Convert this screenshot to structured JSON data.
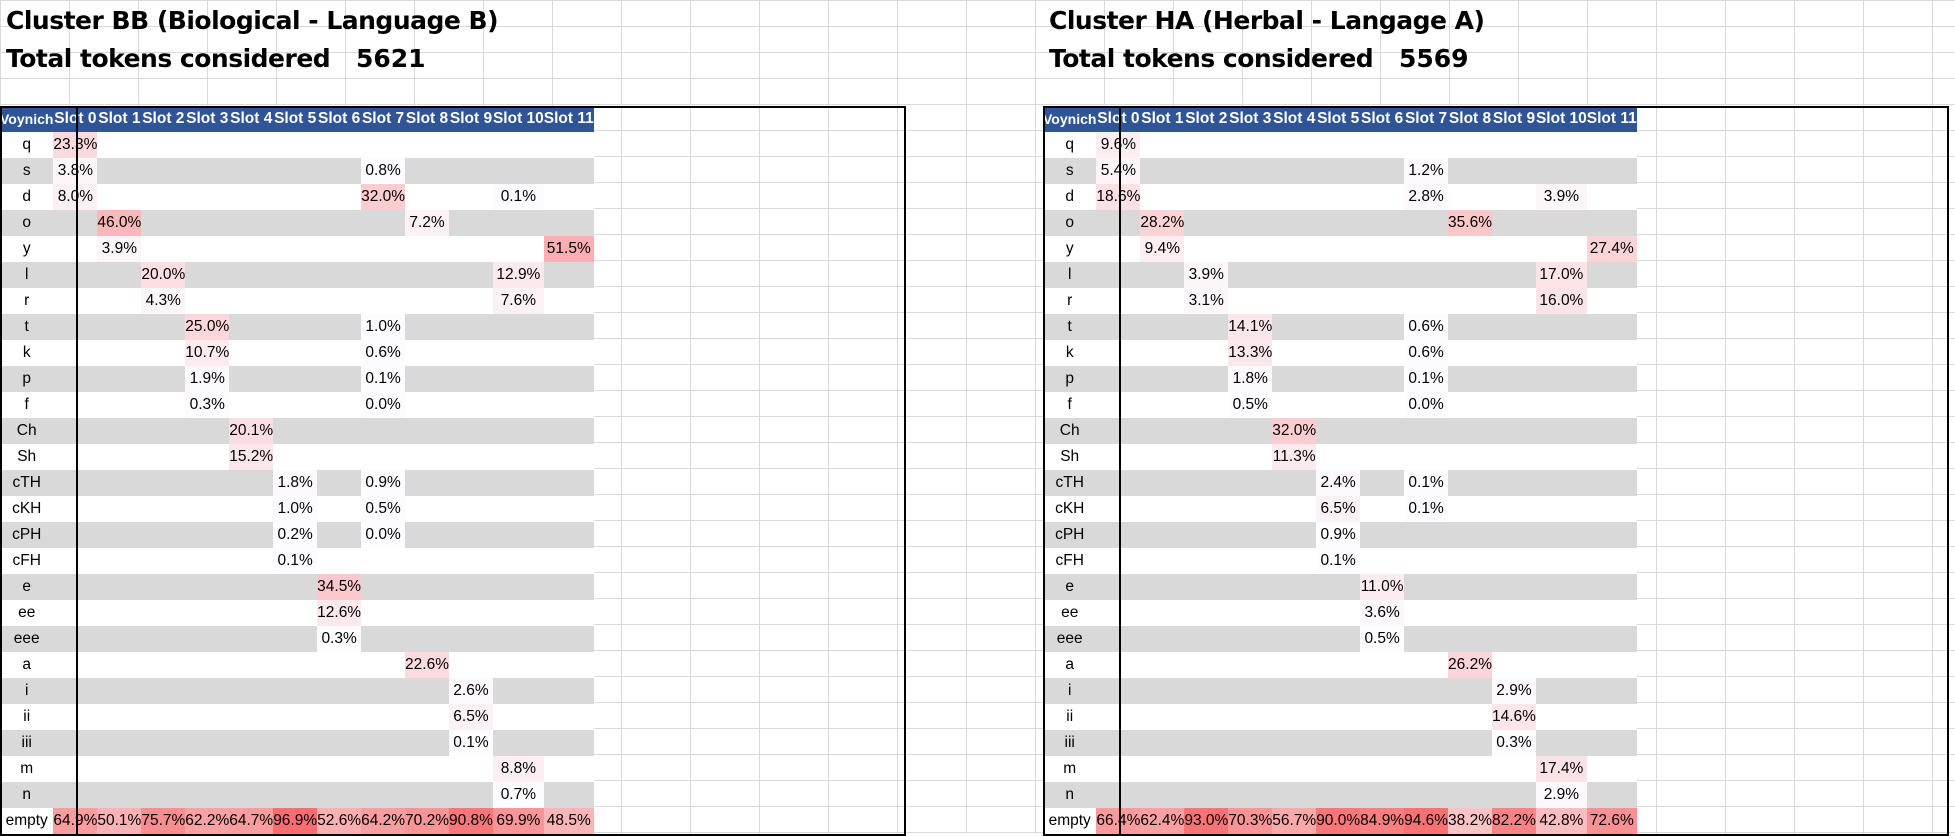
{
  "row_labels": [
    "q",
    "s",
    "d",
    "o",
    "y",
    "l",
    "r",
    "t",
    "k",
    "p",
    "f",
    "Ch",
    "Sh",
    "cTH",
    "cKH",
    "cPH",
    "cFH",
    "e",
    "ee",
    "eee",
    "a",
    "i",
    "ii",
    "iii",
    "m",
    "n",
    "empty"
  ],
  "col_header": [
    "Voynich",
    "Slot 0",
    "Slot 1",
    "Slot 2",
    "Slot 3",
    "Slot 4",
    "Slot 5",
    "Slot 6",
    "Slot 7",
    "Slot 8",
    "Slot 9",
    "Slot 10",
    "Slot 11"
  ],
  "colors": {
    "header_bg": "#2f5596",
    "header_text": "#ffffff",
    "stripe": "#d9d9d9",
    "heat_max": "#f8696b"
  },
  "clusters": [
    {
      "title": "Cluster BB (Biological - Language B)",
      "total_label": "Total tokens considered",
      "total_value": "5621",
      "rows": [
        [
          "23.3%",
          "",
          "",
          "",
          "",
          "",
          "",
          "",
          "",
          "",
          "",
          ""
        ],
        [
          "3.8%",
          "",
          "",
          "",
          "",
          "",
          "",
          "0.8%",
          "",
          "",
          "",
          ""
        ],
        [
          "8.0%",
          "",
          "",
          "",
          "",
          "",
          "",
          "32.0%",
          "",
          "",
          "0.1%",
          ""
        ],
        [
          "",
          "46.0%",
          "",
          "",
          "",
          "",
          "",
          "",
          "7.2%",
          "",
          "",
          ""
        ],
        [
          "",
          "3.9%",
          "",
          "",
          "",
          "",
          "",
          "",
          "",
          "",
          "",
          "51.5%"
        ],
        [
          "",
          "",
          "20.0%",
          "",
          "",
          "",
          "",
          "",
          "",
          "",
          "12.9%",
          ""
        ],
        [
          "",
          "",
          "4.3%",
          "",
          "",
          "",
          "",
          "",
          "",
          "",
          "7.6%",
          ""
        ],
        [
          "",
          "",
          "",
          "25.0%",
          "",
          "",
          "",
          "1.0%",
          "",
          "",
          "",
          ""
        ],
        [
          "",
          "",
          "",
          "10.7%",
          "",
          "",
          "",
          "0.6%",
          "",
          "",
          "",
          ""
        ],
        [
          "",
          "",
          "",
          "1.9%",
          "",
          "",
          "",
          "0.1%",
          "",
          "",
          "",
          ""
        ],
        [
          "",
          "",
          "",
          "0.3%",
          "",
          "",
          "",
          "0.0%",
          "",
          "",
          "",
          ""
        ],
        [
          "",
          "",
          "",
          "",
          "20.1%",
          "",
          "",
          "",
          "",
          "",
          "",
          ""
        ],
        [
          "",
          "",
          "",
          "",
          "15.2%",
          "",
          "",
          "",
          "",
          "",
          "",
          ""
        ],
        [
          "",
          "",
          "",
          "",
          "",
          "1.8%",
          "",
          "0.9%",
          "",
          "",
          "",
          ""
        ],
        [
          "",
          "",
          "",
          "",
          "",
          "1.0%",
          "",
          "0.5%",
          "",
          "",
          "",
          ""
        ],
        [
          "",
          "",
          "",
          "",
          "",
          "0.2%",
          "",
          "0.0%",
          "",
          "",
          "",
          ""
        ],
        [
          "",
          "",
          "",
          "",
          "",
          "0.1%",
          "",
          "",
          "",
          "",
          "",
          ""
        ],
        [
          "",
          "",
          "",
          "",
          "",
          "",
          "34.5%",
          "",
          "",
          "",
          "",
          ""
        ],
        [
          "",
          "",
          "",
          "",
          "",
          "",
          "12.6%",
          "",
          "",
          "",
          "",
          ""
        ],
        [
          "",
          "",
          "",
          "",
          "",
          "",
          "0.3%",
          "",
          "",
          "",
          "",
          ""
        ],
        [
          "",
          "",
          "",
          "",
          "",
          "",
          "",
          "",
          "22.6%",
          "",
          "",
          ""
        ],
        [
          "",
          "",
          "",
          "",
          "",
          "",
          "",
          "",
          "",
          "2.6%",
          "",
          ""
        ],
        [
          "",
          "",
          "",
          "",
          "",
          "",
          "",
          "",
          "",
          "6.5%",
          "",
          ""
        ],
        [
          "",
          "",
          "",
          "",
          "",
          "",
          "",
          "",
          "",
          "0.1%",
          "",
          ""
        ],
        [
          "",
          "",
          "",
          "",
          "",
          "",
          "",
          "",
          "",
          "",
          "8.8%",
          ""
        ],
        [
          "",
          "",
          "",
          "",
          "",
          "",
          "",
          "",
          "",
          "",
          "0.7%",
          ""
        ],
        [
          "64.9%",
          "50.1%",
          "75.7%",
          "62.2%",
          "64.7%",
          "96.9%",
          "52.6%",
          "64.2%",
          "70.2%",
          "90.8%",
          "69.9%",
          "48.5%"
        ]
      ]
    },
    {
      "title": "Cluster HA (Herbal - Langage A)",
      "total_label": "Total tokens considered",
      "total_value": "5569",
      "rows": [
        [
          "9.6%",
          "",
          "",
          "",
          "",
          "",
          "",
          "",
          "",
          "",
          "",
          ""
        ],
        [
          "5.4%",
          "",
          "",
          "",
          "",
          "",
          "",
          "1.2%",
          "",
          "",
          "",
          ""
        ],
        [
          "18.6%",
          "",
          "",
          "",
          "",
          "",
          "",
          "2.8%",
          "",
          "",
          "3.9%",
          ""
        ],
        [
          "",
          "28.2%",
          "",
          "",
          "",
          "",
          "",
          "",
          "35.6%",
          "",
          "",
          ""
        ],
        [
          "",
          "9.4%",
          "",
          "",
          "",
          "",
          "",
          "",
          "",
          "",
          "",
          "27.4%"
        ],
        [
          "",
          "",
          "3.9%",
          "",
          "",
          "",
          "",
          "",
          "",
          "",
          "17.0%",
          ""
        ],
        [
          "",
          "",
          "3.1%",
          "",
          "",
          "",
          "",
          "",
          "",
          "",
          "16.0%",
          ""
        ],
        [
          "",
          "",
          "",
          "14.1%",
          "",
          "",
          "",
          "0.6%",
          "",
          "",
          "",
          ""
        ],
        [
          "",
          "",
          "",
          "13.3%",
          "",
          "",
          "",
          "0.6%",
          "",
          "",
          "",
          ""
        ],
        [
          "",
          "",
          "",
          "1.8%",
          "",
          "",
          "",
          "0.1%",
          "",
          "",
          "",
          ""
        ],
        [
          "",
          "",
          "",
          "0.5%",
          "",
          "",
          "",
          "0.0%",
          "",
          "",
          "",
          ""
        ],
        [
          "",
          "",
          "",
          "",
          "32.0%",
          "",
          "",
          "",
          "",
          "",
          "",
          ""
        ],
        [
          "",
          "",
          "",
          "",
          "11.3%",
          "",
          "",
          "",
          "",
          "",
          "",
          ""
        ],
        [
          "",
          "",
          "",
          "",
          "",
          "2.4%",
          "",
          "0.1%",
          "",
          "",
          "",
          ""
        ],
        [
          "",
          "",
          "",
          "",
          "",
          "6.5%",
          "",
          "0.1%",
          "",
          "",
          "",
          ""
        ],
        [
          "",
          "",
          "",
          "",
          "",
          "0.9%",
          "",
          "",
          "",
          "",
          "",
          ""
        ],
        [
          "",
          "",
          "",
          "",
          "",
          "0.1%",
          "",
          "",
          "",
          "",
          "",
          ""
        ],
        [
          "",
          "",
          "",
          "",
          "",
          "",
          "11.0%",
          "",
          "",
          "",
          "",
          ""
        ],
        [
          "",
          "",
          "",
          "",
          "",
          "",
          "3.6%",
          "",
          "",
          "",
          "",
          ""
        ],
        [
          "",
          "",
          "",
          "",
          "",
          "",
          "0.5%",
          "",
          "",
          "",
          "",
          ""
        ],
        [
          "",
          "",
          "",
          "",
          "",
          "",
          "",
          "",
          "26.2%",
          "",
          "",
          ""
        ],
        [
          "",
          "",
          "",
          "",
          "",
          "",
          "",
          "",
          "",
          "2.9%",
          "",
          ""
        ],
        [
          "",
          "",
          "",
          "",
          "",
          "",
          "",
          "",
          "",
          "14.6%",
          "",
          ""
        ],
        [
          "",
          "",
          "",
          "",
          "",
          "",
          "",
          "",
          "",
          "0.3%",
          "",
          ""
        ],
        [
          "",
          "",
          "",
          "",
          "",
          "",
          "",
          "",
          "",
          "",
          "17.4%",
          ""
        ],
        [
          "",
          "",
          "",
          "",
          "",
          "",
          "",
          "",
          "",
          "",
          "2.9%",
          ""
        ],
        [
          "66.4%",
          "62.4%",
          "93.0%",
          "70.3%",
          "56.7%",
          "90.0%",
          "84.9%",
          "94.6%",
          "38.2%",
          "82.2%",
          "42.8%",
          "72.6%"
        ]
      ]
    }
  ]
}
